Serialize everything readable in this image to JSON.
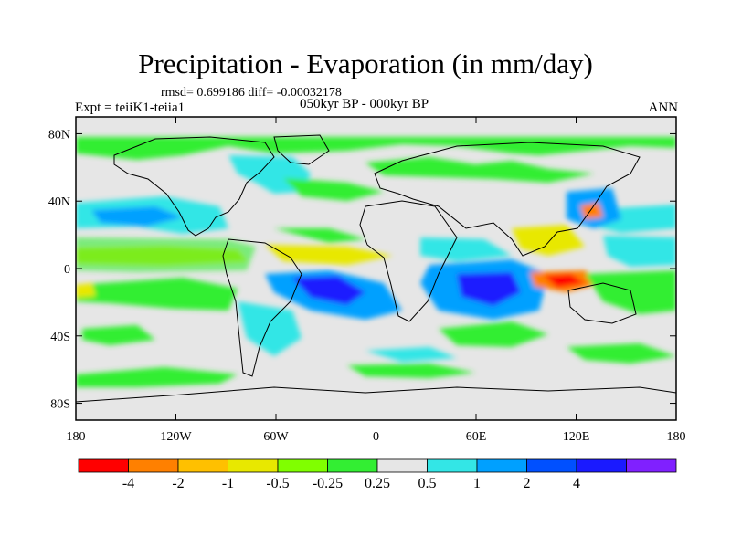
{
  "title": "Precipitation - Evaporation (in mm/day)",
  "stats_line": "rmsd= 0.699186 diff= -0.00032178",
  "experiment_label": "Expt = teiiK1-teiia1",
  "period_label": "050kyr BP - 000kyr BP",
  "season_label": "ANN",
  "x_ticks": [
    "180",
    "120W",
    "60W",
    "0",
    "60E",
    "120E",
    "180"
  ],
  "y_ticks": [
    "80N",
    "40N",
    "0",
    "40S",
    "80S"
  ],
  "colorbar": {
    "colors": [
      "#ff0000",
      "#ff8000",
      "#ffc000",
      "#e8e800",
      "#80ff00",
      "#33ee33",
      "#e6e6e6",
      "#33e6e6",
      "#00a0ff",
      "#0050ff",
      "#1a1aff",
      "#8020ff"
    ],
    "labels": [
      "-4",
      "-2",
      "-1",
      "-0.5",
      "-0.25",
      "0.25",
      "0.5",
      "1",
      "2",
      "4"
    ]
  },
  "background_color": "#e6e6e6"
}
